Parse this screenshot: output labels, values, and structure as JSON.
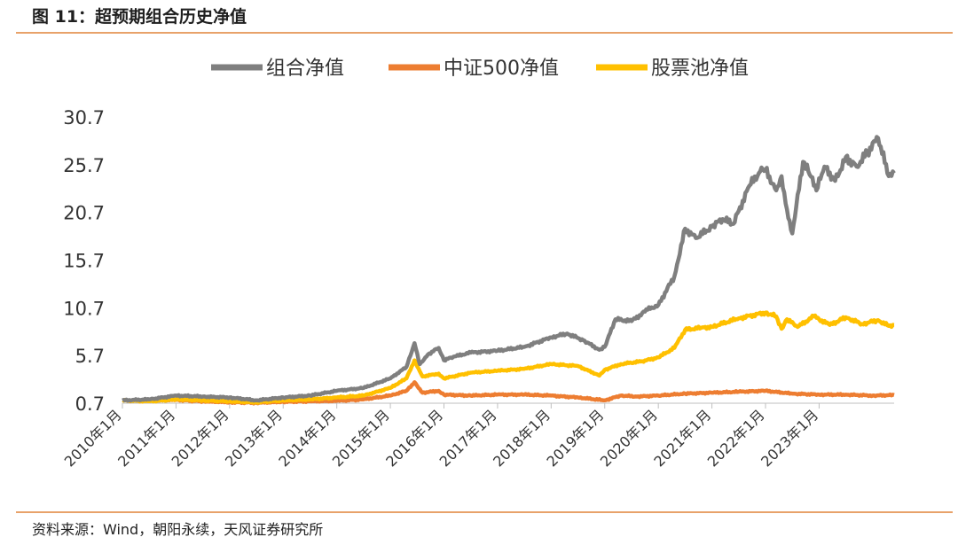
{
  "title": "图 11：超预期组合历史净值",
  "source": "资料来源：Wind，朝阳永续，天风证券研究所",
  "colors": {
    "portfolio": "#7f7f7f",
    "csi500": "#ed7d31",
    "pool": "#ffc000",
    "rule": "#e8a26a"
  },
  "chart_data": {
    "type": "line",
    "title": "",
    "xlabel": "",
    "ylabel": "",
    "ylim": [
      0.7,
      30.7
    ],
    "yticks": [
      "0.7",
      "5.7",
      "10.7",
      "15.7",
      "20.7",
      "25.7",
      "30.7"
    ],
    "xlim": [
      2010.0,
      2024.4
    ],
    "xticks": [
      "2010年1月",
      "2011年1月",
      "2012年1月",
      "2013年1月",
      "2014年1月",
      "2015年1月",
      "2016年1月",
      "2017年1月",
      "2018年1月",
      "2019年1月",
      "2020年1月",
      "2021年1月",
      "2022年1月",
      "2023年1月"
    ],
    "legend_position": "top",
    "grid": false,
    "series": [
      {
        "name": "组合净值",
        "color": "#7f7f7f",
        "x": [
          2010.0,
          2010.5,
          2011.0,
          2011.5,
          2012.0,
          2012.5,
          2013.0,
          2013.5,
          2014.0,
          2014.5,
          2015.0,
          2015.3,
          2015.45,
          2015.55,
          2015.7,
          2015.9,
          2016.0,
          2016.2,
          2016.5,
          2017.0,
          2017.5,
          2018.0,
          2018.3,
          2018.6,
          2018.9,
          2019.0,
          2019.2,
          2019.5,
          2019.8,
          2020.0,
          2020.3,
          2020.5,
          2020.7,
          2021.0,
          2021.2,
          2021.4,
          2021.7,
          2021.9,
          2022.0,
          2022.2,
          2022.3,
          2022.4,
          2022.5,
          2022.7,
          2022.8,
          2022.95,
          2023.1,
          2023.3,
          2023.5,
          2023.7,
          2023.9,
          2024.1,
          2024.3,
          2024.4
        ],
        "y": [
          1.0,
          1.1,
          1.5,
          1.4,
          1.3,
          1.0,
          1.3,
          1.5,
          2.0,
          2.3,
          3.3,
          4.5,
          7.0,
          4.8,
          5.8,
          6.5,
          5.2,
          5.6,
          6.0,
          6.2,
          6.6,
          7.6,
          8.0,
          7.3,
          6.3,
          6.6,
          9.5,
          9.3,
          10.5,
          11.0,
          14.0,
          19.0,
          18.0,
          19.2,
          20.0,
          19.5,
          23.5,
          25.0,
          25.2,
          23.0,
          24.5,
          21.0,
          18.5,
          26.0,
          25.0,
          23.0,
          25.5,
          24.0,
          26.5,
          25.5,
          27.0,
          28.5,
          24.5,
          24.8
        ]
      },
      {
        "name": "中证500净值",
        "color": "#ed7d31",
        "x": [
          2010.0,
          2010.5,
          2011.0,
          2011.5,
          2012.0,
          2012.5,
          2013.0,
          2013.5,
          2014.0,
          2014.5,
          2015.0,
          2015.3,
          2015.45,
          2015.6,
          2015.9,
          2016.0,
          2016.5,
          2017.0,
          2017.5,
          2018.0,
          2018.5,
          2019.0,
          2019.3,
          2019.6,
          2020.0,
          2020.5,
          2021.0,
          2021.5,
          2022.0,
          2022.5,
          2023.0,
          2023.5,
          2024.0,
          2024.4
        ],
        "y": [
          1.0,
          0.95,
          1.05,
          0.9,
          0.8,
          0.75,
          0.85,
          0.9,
          0.95,
          1.1,
          1.5,
          2.0,
          2.9,
          1.8,
          2.0,
          1.6,
          1.5,
          1.6,
          1.6,
          1.5,
          1.3,
          1.0,
          1.5,
          1.4,
          1.5,
          1.7,
          1.8,
          1.9,
          2.0,
          1.7,
          1.6,
          1.6,
          1.5,
          1.55
        ]
      },
      {
        "name": "股票池净值",
        "color": "#ffc000",
        "x": [
          2010.0,
          2010.5,
          2011.0,
          2011.5,
          2012.0,
          2012.5,
          2013.0,
          2013.5,
          2014.0,
          2014.5,
          2015.0,
          2015.3,
          2015.45,
          2015.6,
          2015.9,
          2016.0,
          2016.5,
          2017.0,
          2017.5,
          2018.0,
          2018.5,
          2018.9,
          2019.0,
          2019.3,
          2019.7,
          2020.0,
          2020.3,
          2020.5,
          2020.8,
          2021.0,
          2021.5,
          2022.0,
          2022.2,
          2022.3,
          2022.4,
          2022.6,
          2022.9,
          2023.2,
          2023.5,
          2023.8,
          2024.1,
          2024.3,
          2024.4
        ],
        "y": [
          1.0,
          0.9,
          1.1,
          1.0,
          0.9,
          0.8,
          1.0,
          1.1,
          1.3,
          1.5,
          2.3,
          3.3,
          5.2,
          3.5,
          3.8,
          3.3,
          3.9,
          4.1,
          4.3,
          4.8,
          4.6,
          3.6,
          4.2,
          4.8,
          5.1,
          5.5,
          6.5,
          8.4,
          8.6,
          8.7,
          9.6,
          10.2,
          9.8,
          8.5,
          9.5,
          8.7,
          9.8,
          8.9,
          9.7,
          9.0,
          9.4,
          8.8,
          8.9
        ]
      }
    ]
  }
}
